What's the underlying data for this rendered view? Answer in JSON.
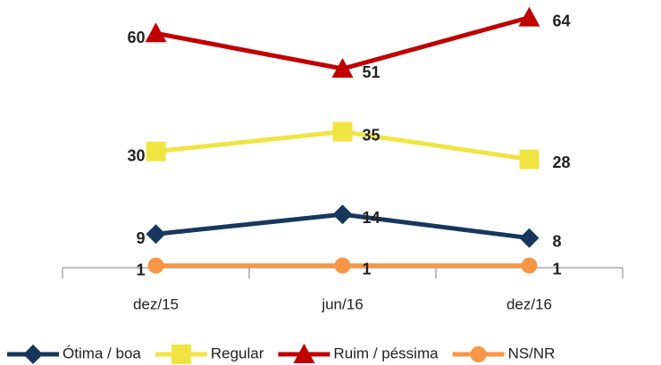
{
  "chart_data": {
    "type": "line",
    "categories": [
      "dez/15",
      "jun/16",
      "dez/16"
    ],
    "series": [
      {
        "name": "Ótima / boa",
        "color": "#17375e",
        "marker": "diamond",
        "values": [
          9,
          14,
          8
        ]
      },
      {
        "name": "Regular",
        "color": "#f0e442",
        "marker": "square",
        "values": [
          30,
          35,
          28
        ]
      },
      {
        "name": "Ruim / péssima",
        "color": "#c00000",
        "marker": "triangle",
        "values": [
          60,
          51,
          64
        ]
      },
      {
        "name": "NS/NR",
        "color": "#f79646",
        "marker": "circle",
        "values": [
          1,
          1,
          1
        ]
      }
    ],
    "ylim": [
      0,
      68
    ],
    "grid": false,
    "legend": "bottom"
  }
}
